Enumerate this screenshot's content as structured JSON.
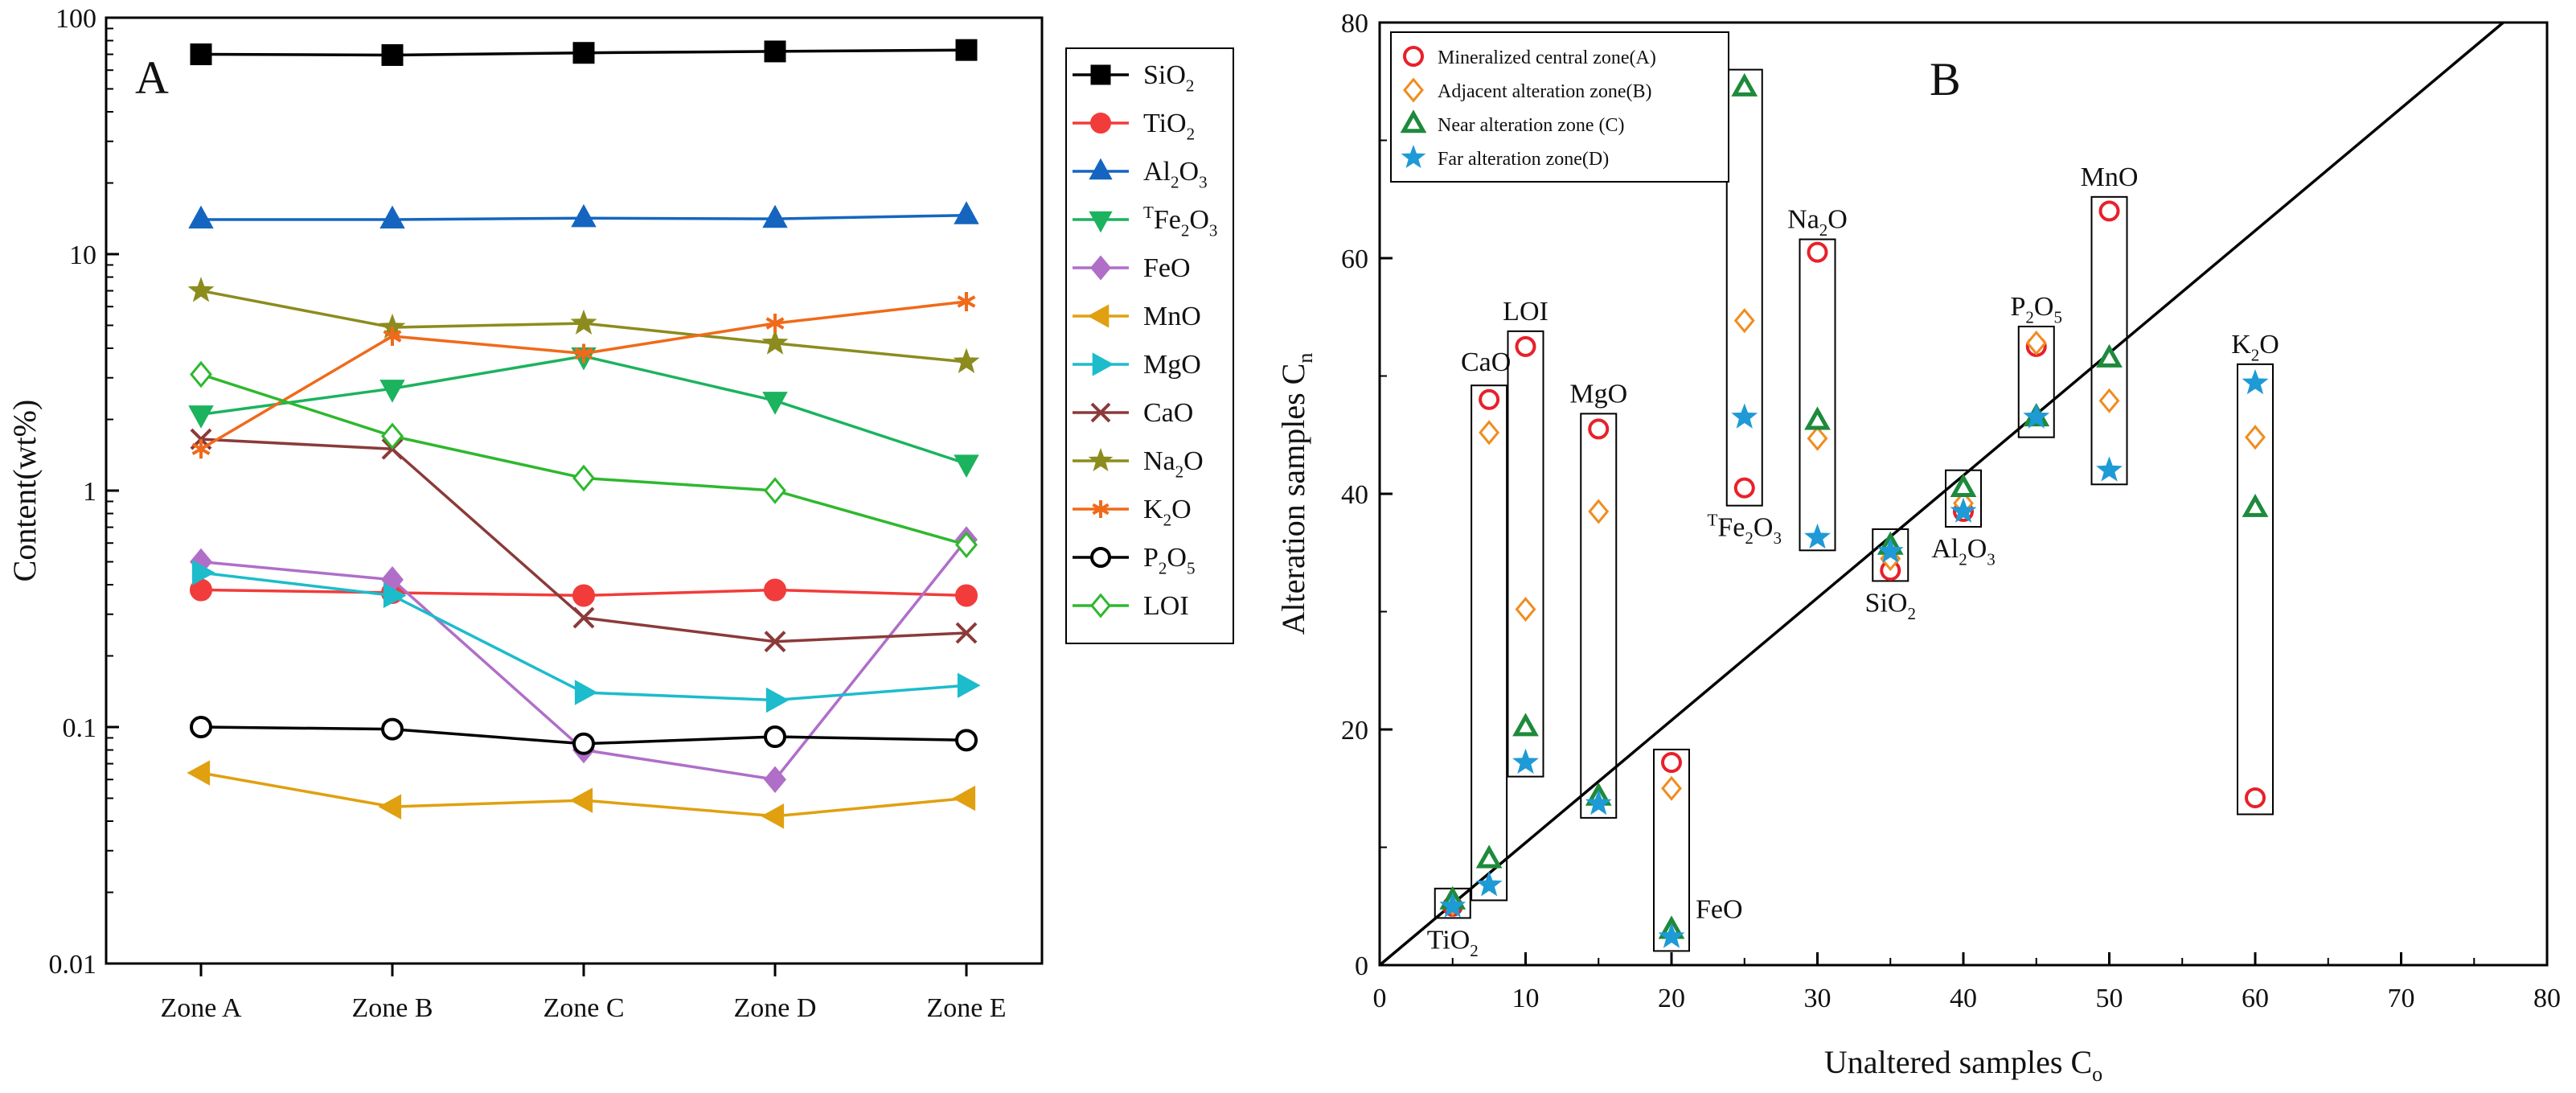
{
  "chart_data": [
    {
      "type": "line",
      "panel_label": "A",
      "yscale": "log",
      "ylim": [
        0.01,
        100
      ],
      "ylabel": "Content(wt%)",
      "xlabel": "",
      "categories": [
        "Zone A",
        "Zone B",
        "Zone C",
        "Zone D",
        "Zone E"
      ],
      "y_ticks": [
        "0.01",
        "0.1",
        "1",
        "10",
        "100"
      ],
      "legend_position": "right",
      "series": [
        {
          "key": "SiO2",
          "label": "SiO",
          "sub": "2",
          "sup": "",
          "tail": "",
          "tailsub": "",
          "color": "#000000",
          "marker": "square",
          "filled": true,
          "values": [
            70,
            69.5,
            71,
            72,
            73
          ]
        },
        {
          "key": "TiO2",
          "label": "TiO",
          "sub": "2",
          "sup": "",
          "tail": "",
          "tailsub": "",
          "color": "#f23b3b",
          "marker": "circle",
          "filled": true,
          "values": [
            0.38,
            0.37,
            0.36,
            0.38,
            0.36
          ]
        },
        {
          "key": "Al2O3",
          "label": "Al",
          "sub": "2",
          "sup": "",
          "tail": "O",
          "tailsub": "3",
          "color": "#1565c0",
          "marker": "triangle-up",
          "filled": true,
          "values": [
            14,
            14,
            14.2,
            14.1,
            14.6
          ]
        },
        {
          "key": "TFe2O3",
          "label": "Fe",
          "sub": "2",
          "sup": "T",
          "tail": "O",
          "tailsub": "3",
          "color": "#1bb35e",
          "marker": "triangle-down",
          "filled": true,
          "values": [
            2.1,
            2.7,
            3.7,
            2.4,
            1.3
          ]
        },
        {
          "key": "FeO",
          "label": "FeO",
          "sub": "",
          "sup": "",
          "tail": "",
          "tailsub": "",
          "color": "#b06ec8",
          "marker": "diamond",
          "filled": true,
          "values": [
            0.5,
            0.42,
            0.08,
            0.06,
            0.62
          ]
        },
        {
          "key": "MnO",
          "label": "MnO",
          "sub": "",
          "sup": "",
          "tail": "",
          "tailsub": "",
          "color": "#e0a010",
          "marker": "triangle-left",
          "filled": true,
          "values": [
            0.064,
            0.046,
            0.049,
            0.042,
            0.05
          ]
        },
        {
          "key": "MgO",
          "label": "MgO",
          "sub": "",
          "sup": "",
          "tail": "",
          "tailsub": "",
          "color": "#1cbccc",
          "marker": "triangle-right",
          "filled": true,
          "values": [
            0.45,
            0.36,
            0.14,
            0.13,
            0.15
          ]
        },
        {
          "key": "CaO",
          "label": "CaO",
          "sub": "",
          "sup": "",
          "tail": "",
          "tailsub": "",
          "color": "#8b3a3a",
          "marker": "x",
          "filled": false,
          "values": [
            1.65,
            1.5,
            0.29,
            0.23,
            0.25
          ]
        },
        {
          "key": "Na2O",
          "label": "Na",
          "sub": "2",
          "sup": "",
          "tail": "O",
          "tailsub": "",
          "color": "#8c8c1e",
          "marker": "star",
          "filled": true,
          "values": [
            7,
            4.9,
            5.1,
            4.2,
            3.5
          ]
        },
        {
          "key": "K2O",
          "label": "K",
          "sub": "2",
          "sup": "",
          "tail": "O",
          "tailsub": "",
          "color": "#f06a1a",
          "marker": "asterisk",
          "filled": false,
          "values": [
            1.5,
            4.5,
            3.8,
            5.1,
            6.3
          ]
        },
        {
          "key": "P2O5",
          "label": "P",
          "sub": "2",
          "sup": "",
          "tail": "O",
          "tailsub": "5",
          "color": "#000000",
          "marker": "circle",
          "filled": false,
          "values": [
            0.1,
            0.098,
            0.085,
            0.091,
            0.088
          ]
        },
        {
          "key": "LOI",
          "label": "LOI",
          "sub": "",
          "sup": "",
          "tail": "",
          "tailsub": "",
          "color": "#2eb82e",
          "marker": "diamond",
          "filled": false,
          "values": [
            3.1,
            1.7,
            1.13,
            1.0,
            0.59
          ]
        }
      ]
    },
    {
      "type": "scatter",
      "panel_label": "B",
      "xlim": [
        0,
        80
      ],
      "ylim": [
        0,
        80
      ],
      "x_ticks": [
        "0",
        "10",
        "20",
        "30",
        "40",
        "50",
        "60",
        "70",
        "80"
      ],
      "y_ticks": [
        "0",
        "20",
        "40",
        "60",
        "80"
      ],
      "xlabel": "Unaltered samples C",
      "xlabel_sub": "o",
      "ylabel": "Alteration samples C",
      "ylabel_sub": "n",
      "reference_line": {
        "x": [
          0,
          77
        ],
        "y": [
          0,
          80
        ]
      },
      "legend_position": "top-left",
      "series": [
        {
          "name": "Mineralized central zone(A)",
          "color": "#e8202a",
          "marker": "circle"
        },
        {
          "name": "Adjacent alteration zone(B)",
          "color": "#f08c1e",
          "marker": "diamond"
        },
        {
          "name": "Near alteration zone (C)",
          "color": "#1e8a3c",
          "marker": "triangle"
        },
        {
          "name": "Far alteration zone(D)",
          "color": "#1e9ad6",
          "marker": "star"
        }
      ],
      "groups": [
        {
          "label": "TiO",
          "sub": "2",
          "sup": "",
          "tail": "",
          "tailsub": "",
          "label_anchor": "below",
          "x": 5,
          "values": [
            5,
            5.2,
            5.5,
            5
          ],
          "box_ylim": [
            4,
            6.5
          ]
        },
        {
          "label": "CaO",
          "sub": "",
          "sup": "",
          "tail": "",
          "tailsub": "",
          "label_anchor": "above-left",
          "x": 7.5,
          "values": [
            48,
            45.2,
            9,
            6.8
          ],
          "box_ylim": [
            5.5,
            49.2
          ]
        },
        {
          "label": "LOI",
          "sub": "",
          "sup": "",
          "tail": "",
          "tailsub": "",
          "label_anchor": "above",
          "x": 10,
          "values": [
            52.5,
            30.2,
            20.2,
            17.2
          ],
          "box_ylim": [
            16,
            53.8
          ]
        },
        {
          "label": "MgO",
          "sub": "",
          "sup": "",
          "tail": "",
          "tailsub": "",
          "label_anchor": "above",
          "x": 15,
          "values": [
            45.5,
            38.5,
            14.3,
            13.7
          ],
          "box_ylim": [
            12.5,
            46.8
          ]
        },
        {
          "label": "FeO",
          "sub": "",
          "sup": "",
          "tail": "",
          "tailsub": "",
          "label_anchor": "right",
          "x": 20,
          "values": [
            17.2,
            15,
            3,
            2.4
          ],
          "box_ylim": [
            1.2,
            18.3
          ]
        },
        {
          "label": "Fe",
          "sub": "2",
          "sup": "T",
          "tail": "O",
          "tailsub": "3",
          "label_anchor": "below",
          "x": 25,
          "values": [
            40.5,
            54.7,
            74.5,
            46.5
          ],
          "box_ylim": [
            39,
            76
          ]
        },
        {
          "label": "Na",
          "sub": "2",
          "sup": "",
          "tail": "O",
          "tailsub": "",
          "label_anchor": "above",
          "x": 30,
          "values": [
            60.5,
            44.7,
            46.2,
            36.3
          ],
          "box_ylim": [
            35.2,
            61.6
          ]
        },
        {
          "label": "SiO",
          "sub": "2",
          "sup": "",
          "tail": "",
          "tailsub": "",
          "label_anchor": "below",
          "x": 35,
          "values": [
            33.5,
            34.5,
            35.6,
            35.1
          ],
          "box_ylim": [
            32.6,
            37
          ]
        },
        {
          "label": "Al",
          "sub": "2",
          "sup": "",
          "tail": "O",
          "tailsub": "3",
          "label_anchor": "below",
          "x": 40,
          "values": [
            38.5,
            39.2,
            40.5,
            38.5
          ],
          "box_ylim": [
            37.2,
            42
          ]
        },
        {
          "label": "P",
          "sub": "2",
          "sup": "",
          "tail": "O",
          "tailsub": "5",
          "label_anchor": "above",
          "x": 45,
          "values": [
            52.5,
            52.8,
            46.5,
            46.5
          ],
          "box_ylim": [
            44.8,
            54.2
          ]
        },
        {
          "label": "MnO",
          "sub": "",
          "sup": "",
          "tail": "",
          "tailsub": "",
          "label_anchor": "above",
          "x": 50,
          "values": [
            64,
            47.9,
            51.5,
            42
          ],
          "box_ylim": [
            40.8,
            65.2
          ]
        },
        {
          "label": "K",
          "sub": "2",
          "sup": "",
          "tail": "O",
          "tailsub": "",
          "label_anchor": "above",
          "x": 60,
          "values": [
            14.2,
            44.8,
            38.8,
            49.4
          ],
          "box_ylim": [
            12.8,
            51
          ]
        }
      ]
    }
  ]
}
